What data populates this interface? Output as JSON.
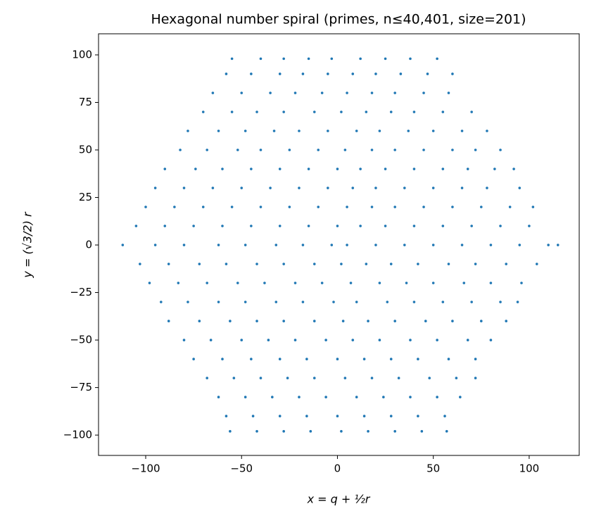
{
  "chart_data": {
    "type": "scatter",
    "title": "Hexagonal number spiral (primes, n≤40,401, size=201)",
    "xlabel": "x = q + ½r",
    "ylabel": "y = (√3/2) r",
    "color": "#1f77b4",
    "xlim": [
      -124.6,
      126.1
    ],
    "ylim": [
      -110.7,
      111.1
    ],
    "xticks": [
      {
        "value": -100,
        "label": "−100"
      },
      {
        "value": -50,
        "label": "−50"
      },
      0,
      50,
      100
    ],
    "yticks": [
      {
        "value": -100,
        "label": "−100"
      },
      {
        "value": -75,
        "label": "−75"
      },
      {
        "value": -50,
        "label": "−50"
      },
      {
        "value": -25,
        "label": "−25"
      },
      0,
      25,
      50,
      75,
      100
    ],
    "x": [
      -55,
      -40,
      -28,
      -15,
      -3,
      12,
      25,
      38,
      52,
      -58,
      -45,
      -30,
      -18,
      -5,
      8,
      20,
      33,
      47,
      60,
      -65,
      -50,
      -35,
      -22,
      -8,
      5,
      18,
      30,
      45,
      58,
      -70,
      -55,
      -42,
      -28,
      -12,
      2,
      15,
      28,
      40,
      55,
      70,
      -78,
      -62,
      -48,
      -33,
      -20,
      -5,
      10,
      22,
      37,
      50,
      65,
      78,
      -82,
      -68,
      -52,
      -40,
      -25,
      -10,
      4,
      18,
      30,
      45,
      60,
      72,
      85,
      -90,
      -74,
      -60,
      -45,
      -30,
      -15,
      0,
      12,
      25,
      40,
      55,
      68,
      82,
      92,
      -95,
      -80,
      -65,
      -50,
      -35,
      -20,
      -5,
      8,
      20,
      35,
      50,
      65,
      78,
      95,
      -100,
      -85,
      -70,
      -55,
      -40,
      -25,
      -10,
      5,
      18,
      30,
      45,
      60,
      75,
      90,
      102,
      -105,
      -90,
      -75,
      -60,
      -45,
      -30,
      -15,
      0,
      12,
      25,
      40,
      55,
      70,
      85,
      100,
      -112,
      -95,
      -80,
      -62,
      -48,
      -32,
      -18,
      -3,
      5,
      20,
      35,
      50,
      65,
      80,
      95,
      110,
      115,
      -103,
      -88,
      -72,
      -58,
      -42,
      -28,
      -12,
      2,
      15,
      28,
      42,
      58,
      72,
      88,
      104,
      -98,
      -83,
      -68,
      -52,
      -38,
      -22,
      -8,
      7,
      22,
      36,
      50,
      66,
      80,
      96,
      -92,
      -78,
      -62,
      -48,
      -32,
      -18,
      -2,
      10,
      26,
      40,
      55,
      70,
      85,
      94,
      -88,
      -72,
      -56,
      -42,
      -28,
      -12,
      3,
      16,
      30,
      46,
      60,
      75,
      88,
      -80,
      -66,
      -50,
      -36,
      -22,
      -6,
      8,
      22,
      38,
      52,
      68,
      80,
      -75,
      -60,
      -45,
      -30,
      -16,
      0,
      14,
      28,
      42,
      58,
      72,
      -68,
      -54,
      -40,
      -26,
      -12,
      4,
      18,
      32,
      48,
      62,
      72,
      -62,
      -48,
      -34,
      -20,
      -6,
      10,
      24,
      38,
      52,
      64,
      -58,
      -44,
      -30,
      -16,
      0,
      14,
      28,
      42,
      56,
      -56,
      -42,
      -28,
      -14,
      2,
      16,
      30,
      44,
      57
    ],
    "values": [
      98,
      98,
      98,
      98,
      98,
      98,
      98,
      98,
      98,
      90,
      90,
      90,
      90,
      90,
      90,
      90,
      90,
      90,
      90,
      80,
      80,
      80,
      80,
      80,
      80,
      80,
      80,
      80,
      80,
      70,
      70,
      70,
      70,
      70,
      70,
      70,
      70,
      70,
      70,
      70,
      60,
      60,
      60,
      60,
      60,
      60,
      60,
      60,
      60,
      60,
      60,
      60,
      50,
      50,
      50,
      50,
      50,
      50,
      50,
      50,
      50,
      50,
      50,
      50,
      50,
      40,
      40,
      40,
      40,
      40,
      40,
      40,
      40,
      40,
      40,
      40,
      40,
      40,
      40,
      30,
      30,
      30,
      30,
      30,
      30,
      30,
      30,
      30,
      30,
      30,
      30,
      30,
      30,
      20,
      20,
      20,
      20,
      20,
      20,
      20,
      20,
      20,
      20,
      20,
      20,
      20,
      20,
      20,
      10,
      10,
      10,
      10,
      10,
      10,
      10,
      10,
      10,
      10,
      10,
      10,
      10,
      10,
      10,
      0,
      0,
      0,
      0,
      0,
      0,
      0,
      0,
      0,
      0,
      0,
      0,
      0,
      0,
      0,
      0,
      0,
      -10,
      -10,
      -10,
      -10,
      -10,
      -10,
      -10,
      -10,
      -10,
      -10,
      -10,
      -10,
      -10,
      -10,
      -10,
      -20,
      -20,
      -20,
      -20,
      -20,
      -20,
      -20,
      -20,
      -20,
      -20,
      -20,
      -20,
      -20,
      -20,
      -30,
      -30,
      -30,
      -30,
      -30,
      -30,
      -30,
      -30,
      -30,
      -30,
      -30,
      -30,
      -30,
      -30,
      -40,
      -40,
      -40,
      -40,
      -40,
      -40,
      -40,
      -40,
      -40,
      -40,
      -40,
      -40,
      -40,
      -50,
      -50,
      -50,
      -50,
      -50,
      -50,
      -50,
      -50,
      -50,
      -50,
      -50,
      -50,
      -60,
      -60,
      -60,
      -60,
      -60,
      -60,
      -60,
      -60,
      -60,
      -60,
      -60,
      -70,
      -70,
      -70,
      -70,
      -70,
      -70,
      -70,
      -70,
      -70,
      -70,
      -70,
      -80,
      -80,
      -80,
      -80,
      -80,
      -80,
      -80,
      -80,
      -80,
      -80,
      -90,
      -90,
      -90,
      -90,
      -90,
      -90,
      -90,
      -90,
      -90,
      -98,
      -98,
      -98,
      -98,
      -98,
      -98,
      -98,
      -98,
      -98
    ]
  }
}
